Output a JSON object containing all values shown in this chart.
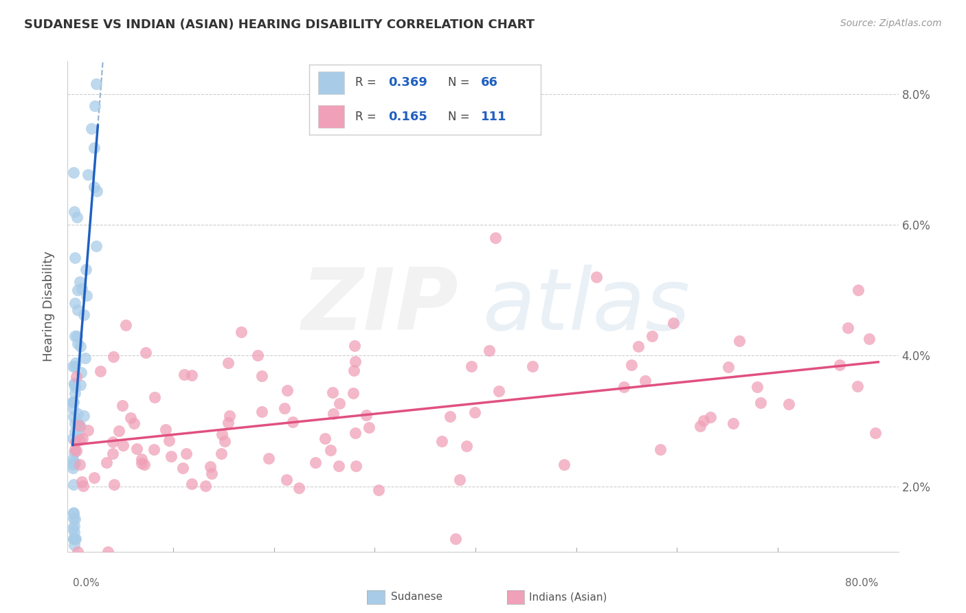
{
  "title": "SUDANESE VS INDIAN (ASIAN) HEARING DISABILITY CORRELATION CHART",
  "source": "Source: ZipAtlas.com",
  "ylabel": "Hearing Disability",
  "sudanese_color": "#a8cce8",
  "indian_color": "#f0a0b8",
  "sudanese_line_color": "#2060c0",
  "indian_line_color": "#e05080",
  "sudanese_ext_color": "#b8cce0",
  "legend_r1": "0.369",
  "legend_n1": "66",
  "legend_r2": "0.165",
  "legend_n2": "111",
  "r_color": "#2060c0",
  "n_color": "#2060c0",
  "watermark_zip_color": "#e8e8e8",
  "watermark_atlas_color": "#d0dce8",
  "background": "#ffffff",
  "grid_color": "#cccccc",
  "tick_color": "#666666",
  "title_color": "#333333",
  "source_color": "#999999",
  "label_color": "#555555",
  "xmin": 0.0,
  "xmax": 0.8,
  "ymin": 0.01,
  "ymax": 0.085,
  "yticks": [
    0.02,
    0.04,
    0.06,
    0.08
  ],
  "ytick_labels": [
    "2.0%",
    "4.0%",
    "6.0%",
    "8.0%"
  ]
}
